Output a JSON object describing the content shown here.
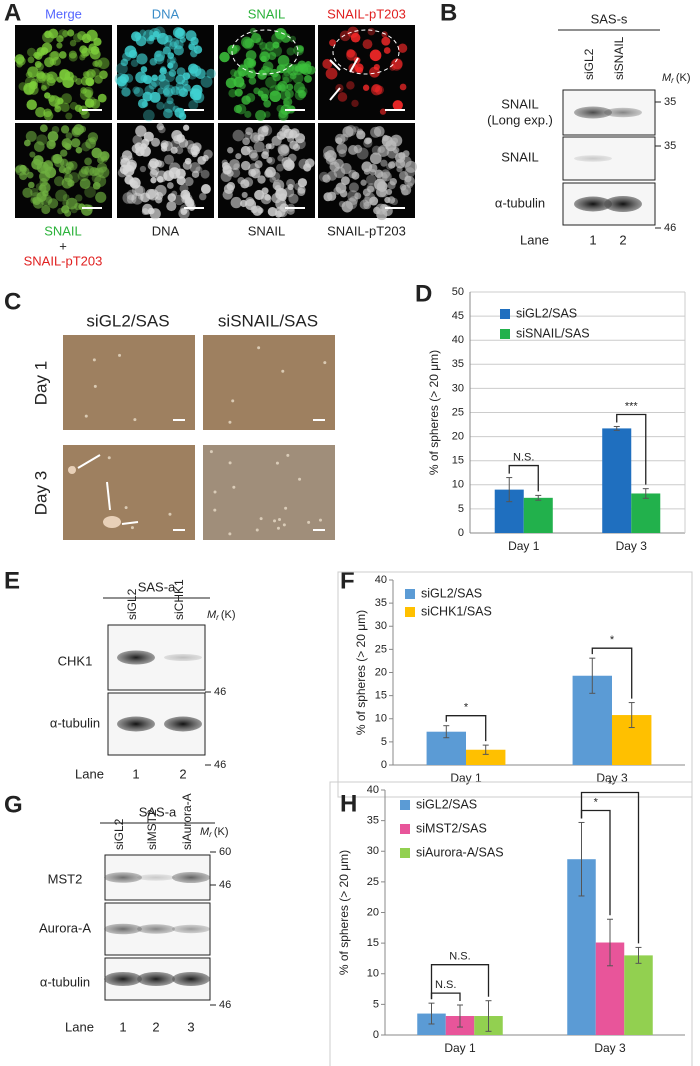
{
  "panels": {
    "A": {
      "label": "A",
      "top": [
        "Merge",
        "DNA",
        "SNAIL",
        "SNAIL-pT203"
      ],
      "bottom_merge": [
        "SNAIL",
        "+",
        "SNAIL-pT203"
      ],
      "bottom": [
        "DNA",
        "SNAIL",
        "SNAIL-pT203"
      ]
    },
    "B": {
      "label": "B",
      "cell": "SAS-s",
      "lanes": [
        "siGL2",
        "siSNAIL"
      ],
      "mr": [
        "M",
        "r",
        "(K)"
      ],
      "blots": [
        "SNAIL",
        "(Long exp.)",
        "SNAIL",
        "α-tubulin"
      ],
      "markers": [
        35,
        35,
        46
      ],
      "lane_label": "Lane",
      "lane_numbers": [
        1,
        2
      ]
    },
    "C": {
      "label": "C",
      "columns": [
        "siGL2/SAS",
        "siSNAIL/SAS"
      ],
      "rows": [
        "Day 1",
        "Day 3"
      ]
    },
    "D": {
      "label": "D"
    },
    "E": {
      "label": "E",
      "cell": "SAS-a",
      "lanes": [
        "siGL2",
        "siCHK1"
      ],
      "mr": [
        "M",
        "r",
        "(K)"
      ],
      "blots": [
        "CHK1",
        "α-tubulin"
      ],
      "markers": [
        46,
        46
      ],
      "lane_label": "Lane",
      "lane_numbers": [
        1,
        2
      ]
    },
    "F": {
      "label": "F"
    },
    "G": {
      "label": "G",
      "cell": "SAS-a",
      "lanes": [
        "siGL2",
        "siMST2",
        "siAurora-A"
      ],
      "mr": [
        "M",
        "r",
        "(K)"
      ],
      "blots": [
        "MST2",
        "Aurora-A",
        "α-tubulin"
      ],
      "markers": [
        60,
        46,
        46
      ],
      "lane_label": "Lane",
      "lane_numbers": [
        1,
        2,
        3
      ]
    },
    "H": {
      "label": "H"
    }
  },
  "chart_data": [
    {
      "type": "bar",
      "y_label": "% of spheres (> 20 μm)",
      "categories": [
        "Day 1",
        "Day 3"
      ],
      "series": [
        {
          "name": "siGL2/SAS",
          "color": "#1f6fbf",
          "values": [
            9,
            21.7
          ],
          "errors": [
            2.5,
            0.4
          ]
        },
        {
          "name": "siSNAIL/SAS",
          "color": "#22b14c",
          "values": [
            7.3,
            8.2
          ],
          "errors": [
            0.5,
            1
          ]
        }
      ],
      "ylim": [
        0,
        50
      ],
      "yticks": [
        0,
        5,
        10,
        15,
        20,
        25,
        30,
        35,
        40,
        45,
        50
      ],
      "grid": true,
      "legend": "upper left",
      "annotations": [
        "N.S.",
        "***"
      ]
    },
    {
      "type": "bar",
      "y_label": "% of spheres (> 20 μm)",
      "categories": [
        "Day 1",
        "Day 3"
      ],
      "series": [
        {
          "name": "siGL2/SAS",
          "color": "#5b9bd5",
          "values": [
            7.2,
            19.3
          ],
          "errors": [
            1.3,
            3.8
          ]
        },
        {
          "name": "siCHK1/SAS",
          "color": "#ffc000",
          "values": [
            3.3,
            10.8
          ],
          "errors": [
            1,
            2.7
          ]
        }
      ],
      "ylim": [
        0,
        40
      ],
      "yticks": [
        0,
        5,
        10,
        15,
        20,
        25,
        30,
        35,
        40
      ],
      "grid": false,
      "legend": "upper left",
      "annotations": [
        "*",
        "*"
      ]
    },
    {
      "type": "bar",
      "y_label": "% of spheres (> 20 μm)",
      "categories": [
        "Day 1",
        "Day 3"
      ],
      "series": [
        {
          "name": "siGL2/SAS",
          "color": "#5b9bd5",
          "values": [
            3.5,
            28.7
          ],
          "errors": [
            1.7,
            6
          ]
        },
        {
          "name": "siMST2/SAS",
          "color": "#e8559a",
          "values": [
            3.1,
            15.1
          ],
          "errors": [
            1.8,
            3.8
          ]
        },
        {
          "name": "siAurora-A/SAS",
          "color": "#92d050",
          "values": [
            3.1,
            13
          ],
          "errors": [
            2.5,
            1.3
          ]
        }
      ],
      "ylim": [
        0,
        40
      ],
      "yticks": [
        0,
        5,
        10,
        15,
        20,
        25,
        30,
        35,
        40
      ],
      "grid": false,
      "legend": "upper left",
      "annotations": [
        "N.S.",
        "N.S.",
        "*",
        "*"
      ]
    }
  ]
}
